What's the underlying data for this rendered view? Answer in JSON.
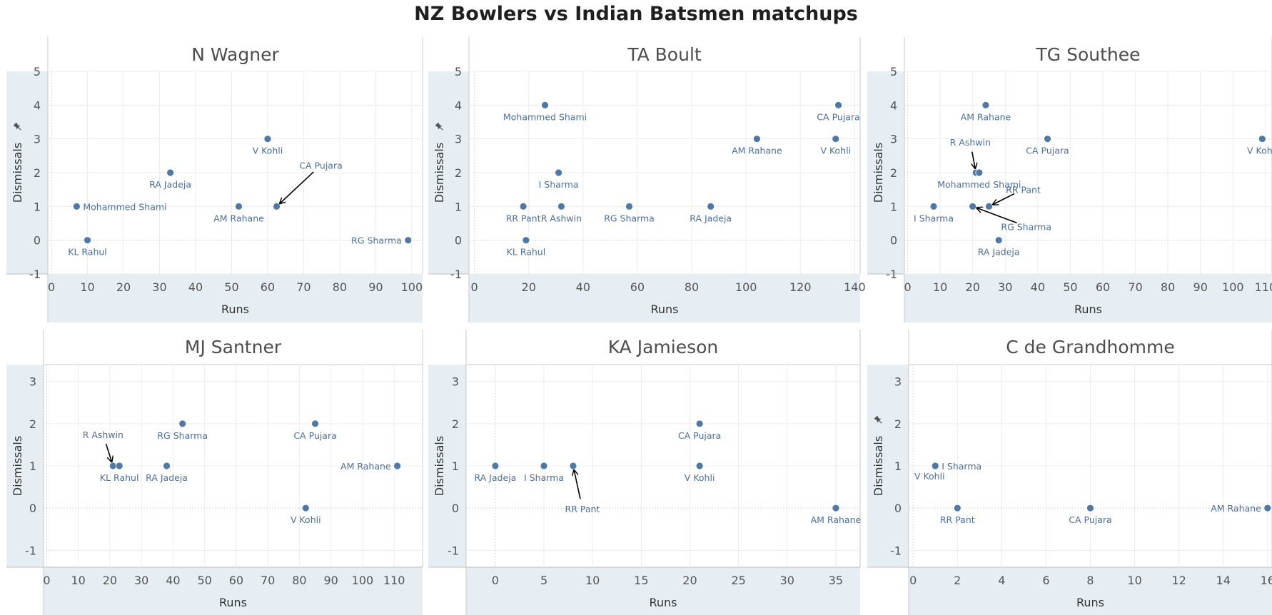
{
  "title": "NZ Bowlers vs Indian Batsmen matchups",
  "colors": {
    "point": "#4e79a7",
    "label": "#4e6f99",
    "band": "#e6eef3",
    "grid": "#ececec",
    "arrow": "#000000"
  },
  "chart_data": [
    {
      "type": "scatter",
      "title": "N Wagner",
      "xlabel": "Runs",
      "ylabel": "Dismissals",
      "pin_icon": "pin-icon",
      "xlim": [
        -1,
        103
      ],
      "ylim": [
        -1,
        5
      ],
      "xticks": [
        0,
        10,
        20,
        30,
        40,
        50,
        60,
        70,
        80,
        90,
        100
      ],
      "yticks": [
        -1,
        0,
        1,
        2,
        3,
        4,
        5
      ],
      "grid": true,
      "points": [
        {
          "name": "KL Rahul",
          "x": 10,
          "y": 0,
          "lpos": "below"
        },
        {
          "name": "Mohammed Shami",
          "x": 7,
          "y": 1,
          "lpos": "right"
        },
        {
          "name": "RA Jadeja",
          "x": 33,
          "y": 2,
          "lpos": "below"
        },
        {
          "name": "AM Rahane",
          "x": 52,
          "y": 1,
          "lpos": "below"
        },
        {
          "name": "V Kohli",
          "x": 60,
          "y": 3,
          "lpos": "below"
        },
        {
          "name": "CA Pujara",
          "x": 62.5,
          "y": 1,
          "lpos": "arrow",
          "ldx": 62,
          "ldy": -53
        },
        {
          "name": "RG Sharma",
          "x": 99,
          "y": 0,
          "lpos": "left"
        }
      ]
    },
    {
      "type": "scatter",
      "title": "TA Boult",
      "xlabel": "Runs",
      "ylabel": "Dismissals",
      "pin_icon": "pin-icon",
      "xlim": [
        -2,
        142
      ],
      "ylim": [
        -1,
        5
      ],
      "xticks": [
        0,
        20,
        40,
        60,
        80,
        100,
        120,
        140
      ],
      "yticks": [
        -1,
        0,
        1,
        2,
        3,
        4,
        5
      ],
      "grid": true,
      "points": [
        {
          "name": "KL Rahul",
          "x": 19,
          "y": 0,
          "lpos": "below"
        },
        {
          "name": "RR Pant",
          "x": 18,
          "y": 1,
          "lpos": "below"
        },
        {
          "name": "R Ashwin",
          "x": 32,
          "y": 1,
          "lpos": "below"
        },
        {
          "name": "I Sharma",
          "x": 31,
          "y": 2,
          "lpos": "below"
        },
        {
          "name": "Mohammed Shami",
          "x": 26,
          "y": 4,
          "lpos": "below"
        },
        {
          "name": "RG Sharma",
          "x": 57,
          "y": 1,
          "lpos": "below"
        },
        {
          "name": "RA Jadeja",
          "x": 87,
          "y": 1,
          "lpos": "below"
        },
        {
          "name": "AM Rahane",
          "x": 104,
          "y": 3,
          "lpos": "below"
        },
        {
          "name": "V Kohli",
          "x": 133,
          "y": 3,
          "lpos": "below"
        },
        {
          "name": "CA Pujara",
          "x": 134,
          "y": 4,
          "lpos": "below"
        }
      ]
    },
    {
      "type": "scatter",
      "title": "TG Southee",
      "xlabel": "Runs",
      "ylabel": "Dismissals",
      "xlim": [
        -1,
        112
      ],
      "ylim": [
        -1,
        5
      ],
      "xticks": [
        0,
        10,
        20,
        30,
        40,
        50,
        60,
        70,
        80,
        90,
        100,
        110
      ],
      "yticks": [
        -1,
        0,
        1,
        2,
        3,
        4,
        5
      ],
      "grid": true,
      "points": [
        {
          "name": "I Sharma",
          "x": 8,
          "y": 1,
          "lpos": "below"
        },
        {
          "name": "RG Sharma",
          "x": 20,
          "y": 1,
          "lpos": "arrow",
          "ldx": 75,
          "ldy": 33
        },
        {
          "name": "RR Pant",
          "x": 25,
          "y": 1,
          "lpos": "arrow",
          "ldx": 48,
          "ldy": -19
        },
        {
          "name": "R Ashwin",
          "x": 21,
          "y": 2,
          "lpos": "arrow",
          "ldx": -8,
          "ldy": -38
        },
        {
          "name": "Mohammed Shami",
          "x": 22,
          "y": 2,
          "lpos": "below"
        },
        {
          "name": "RA Jadeja",
          "x": 28,
          "y": 0,
          "lpos": "below"
        },
        {
          "name": "AM Rahane",
          "x": 24,
          "y": 4,
          "lpos": "below"
        },
        {
          "name": "CA Pujara",
          "x": 43,
          "y": 3,
          "lpos": "below"
        },
        {
          "name": "V Kohli",
          "x": 109,
          "y": 3,
          "lpos": "below"
        }
      ]
    },
    {
      "type": "scatter",
      "title": "MJ Santner",
      "xlabel": "Runs",
      "ylabel": "Dismissals",
      "xlim": [
        -1,
        119
      ],
      "ylim": [
        -1.4,
        3.4
      ],
      "xticks": [
        0,
        10,
        20,
        30,
        40,
        50,
        60,
        70,
        80,
        90,
        100,
        110
      ],
      "yticks": [
        -1,
        0,
        1,
        2,
        3
      ],
      "grid": true,
      "points": [
        {
          "name": "R Ashwin",
          "x": 21,
          "y": 1,
          "lpos": "arrow",
          "ldx": -14,
          "ldy": -39
        },
        {
          "name": "KL Rahul",
          "x": 23,
          "y": 1,
          "lpos": "below"
        },
        {
          "name": "RA Jadeja",
          "x": 38,
          "y": 1,
          "lpos": "below"
        },
        {
          "name": "RG Sharma",
          "x": 43,
          "y": 2,
          "lpos": "below"
        },
        {
          "name": "CA Pujara",
          "x": 85,
          "y": 2,
          "lpos": "below"
        },
        {
          "name": "V Kohli",
          "x": 82,
          "y": 0,
          "lpos": "below"
        },
        {
          "name": "AM Rahane",
          "x": 111,
          "y": 1,
          "lpos": "left"
        }
      ]
    },
    {
      "type": "scatter",
      "title": "KA Jamieson",
      "xlabel": "Runs",
      "ylabel": "Dismissals",
      "xlim": [
        -3,
        37.5
      ],
      "ylim": [
        -1.4,
        3.4
      ],
      "xticks": [
        0,
        5,
        10,
        15,
        20,
        25,
        30,
        35
      ],
      "yticks": [
        -1,
        0,
        1,
        2,
        3
      ],
      "grid": true,
      "points": [
        {
          "name": "RA Jadeja",
          "x": 0,
          "y": 1,
          "lpos": "below"
        },
        {
          "name": "I Sharma",
          "x": 5,
          "y": 1,
          "lpos": "below"
        },
        {
          "name": "RR Pant",
          "x": 8,
          "y": 1,
          "lpos": "arrow",
          "ldx": 13,
          "ldy": 65
        },
        {
          "name": "CA Pujara",
          "x": 21,
          "y": 2,
          "lpos": "below"
        },
        {
          "name": "V Kohli",
          "x": 21,
          "y": 1,
          "lpos": "below"
        },
        {
          "name": "AM Rahane",
          "x": 35,
          "y": 0,
          "lpos": "below"
        }
      ]
    },
    {
      "type": "scatter",
      "title": "C de Grandhomme",
      "xlabel": "Runs",
      "ylabel": "Dismissals",
      "pin_icon": "pin-icon",
      "xlim": [
        -0.2,
        16.2
      ],
      "ylim": [
        -1.4,
        3.4
      ],
      "xticks": [
        0,
        2,
        4,
        6,
        8,
        10,
        12,
        14,
        16
      ],
      "yticks": [
        -1,
        0,
        1,
        2,
        3
      ],
      "grid": true,
      "points": [
        {
          "name": "V Kohli",
          "x": 1,
          "y": 1,
          "lpos": "below-left"
        },
        {
          "name": "I Sharma",
          "x": 1,
          "y": 1,
          "lpos": "right"
        },
        {
          "name": "RR Pant",
          "x": 2,
          "y": 0,
          "lpos": "below"
        },
        {
          "name": "CA Pujara",
          "x": 8,
          "y": 0,
          "lpos": "below"
        },
        {
          "name": "AM Rahane",
          "x": 16,
          "y": 0,
          "lpos": "left"
        }
      ]
    }
  ]
}
